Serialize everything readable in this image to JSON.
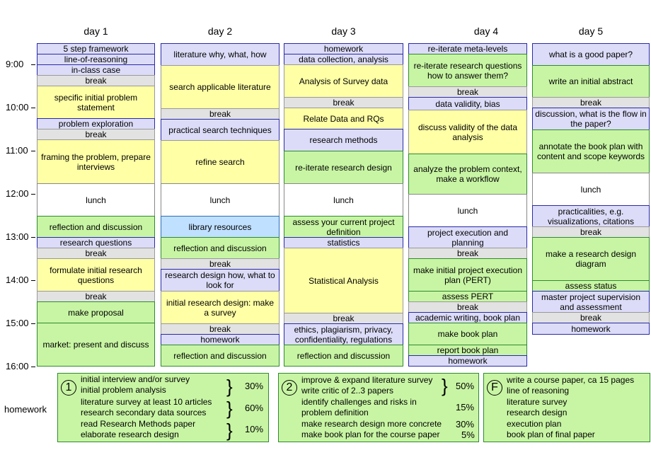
{
  "days": [
    "day 1",
    "day 2",
    "day 3",
    "day 4",
    "day 5"
  ],
  "times": [
    "9:00",
    "10:00",
    "11:00",
    "12:00",
    "13:00",
    "14:00",
    "15:00",
    "16:00"
  ],
  "schedule": {
    "day1": [
      "5 step framework",
      "line-of-reasoning",
      "in-class case",
      "break",
      "specific initial problem statement",
      "problem exploration",
      "break",
      "framing the problem, prepare interviews",
      "lunch",
      "reflection and discussion",
      "research questions",
      "break",
      "formulate initial research questions",
      "break",
      "make proposal",
      "market: present and discuss"
    ],
    "day2": [
      "literature why, what, how",
      "search applicable literature",
      "break",
      "practical search techniques",
      "refine search",
      "lunch",
      "library resources",
      "reflection and discussion",
      "break",
      "research design how, what to look for",
      "initial research design: make a survey",
      "break",
      "homework",
      "reflection and discussion"
    ],
    "day3": [
      "homework",
      "data collection, analysis",
      "Analysis of Survey data",
      "break",
      "Relate Data and RQs",
      "research methods",
      "re-iterate research design",
      "lunch",
      "assess your current project definition",
      "statistics",
      "Statistical Analysis",
      "break",
      "ethics, plagiarism, privacy, confidentiality, regulations",
      "reflection and discussion"
    ],
    "day4": [
      "re-iterate meta-levels",
      "re-iterate research questions how to answer them?",
      "break",
      "data validity, bias",
      "discuss validity of the data analysis",
      "analyze the problem context, make a workflow",
      "lunch",
      "project execution and planning",
      "break",
      "make initial project execution plan (PERT)",
      "assess PERT",
      "break",
      "academic writing, book plan",
      "make book plan",
      "report book plan",
      "homework"
    ],
    "day5": [
      "what is a good paper?",
      "write an initial abstract",
      "break",
      "discussion, what is the flow in the paper?",
      "annotate the book plan with content and scope keywords",
      "lunch",
      "practicalities, e.g. visualizations, citations",
      "break",
      "make a research design diagram",
      "assess status",
      "master project supervision and assessment",
      "break",
      "homework"
    ]
  },
  "homework": {
    "label": "homework",
    "box1": {
      "marker": "1",
      "lines": [
        "initial interview and/or survey",
        "initial problem analysis",
        "literature survey at least 10 articles",
        "research secondary data sources",
        "read Research Methods paper",
        "elaborate research design"
      ],
      "percents": [
        "30%",
        "60%",
        "10%"
      ]
    },
    "box2": {
      "marker": "2",
      "lines": [
        "improve & expand literature survey",
        "write critic of 2..3 papers",
        "identify challenges and risks in",
        "problem definition",
        "make research design more concrete",
        "make book plan for the course paper"
      ],
      "percents": [
        "50%",
        "15%",
        "30%",
        "5%"
      ]
    },
    "boxF": {
      "marker": "F",
      "lines": [
        "write a course paper, ca 15 pages",
        "line of reasoning",
        "literature survey",
        "research design",
        "execution plan",
        "book plan of final paper"
      ]
    }
  },
  "colors": {
    "lavender": "#dcdcf8",
    "yellow": "#ffffa6",
    "green": "#c8f5a4",
    "gray": "#e2e2e2",
    "blue": "#bfe0ff",
    "white": "#ffffff"
  }
}
